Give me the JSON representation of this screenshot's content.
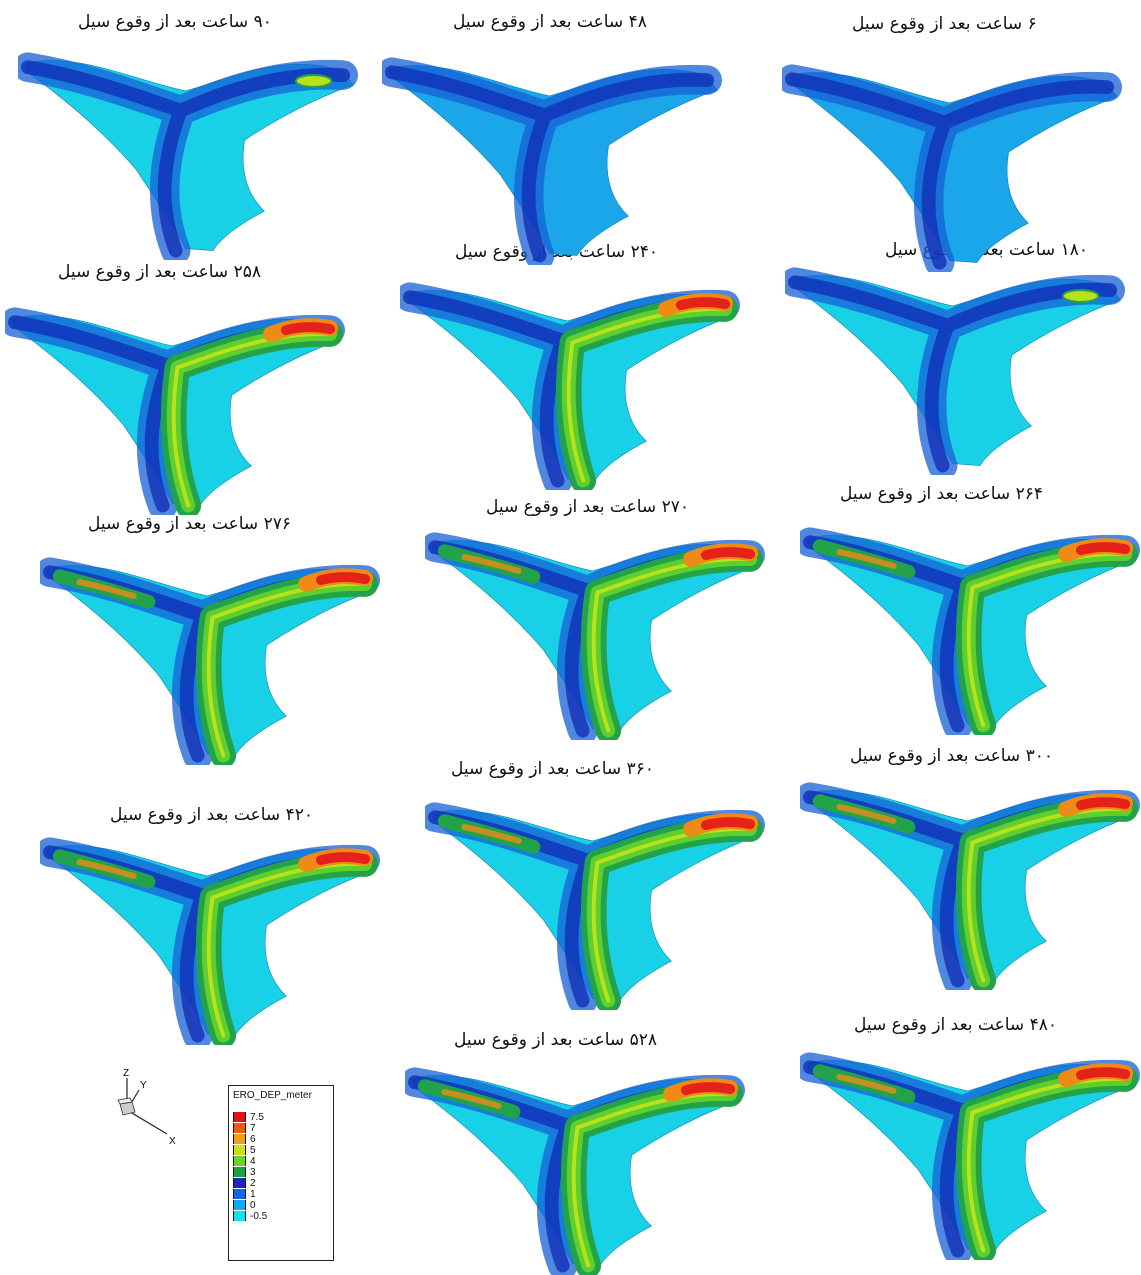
{
  "colors": {
    "cyan": "#19d1e6",
    "light_blue": "#1aa6e8",
    "mid_blue": "#1560d6",
    "dark_blue": "#1230b8",
    "green": "#22a34a",
    "light_green": "#5ecf2f",
    "yellow_green": "#b7e21c",
    "orange": "#f08a16",
    "red": "#e4221a"
  },
  "panels": [
    {
      "title": "۹۰  ساعت بعد از وقوع سیل"
    },
    {
      "title": "۴۸ ساعت بعد از وقوع سیل"
    },
    {
      "title": "۶ ساعت بعد از وقوع سیل"
    },
    {
      "title": "۲۵۸  ساعت بعد از وقوع سیل"
    },
    {
      "title": "۲۴۰ ساعت بعد از وقوع سیل"
    },
    {
      "title": "۱۸۰  ساعت بعد از وقوع سیل"
    },
    {
      "title": "۲۷۶  ساعت بعد از وقوع سیل"
    },
    {
      "title": "۲۷۰ ساعت بعد از وقوع سیل"
    },
    {
      "title": "۲۶۴ ساعت بعد از وقوع سیل"
    },
    {
      "title": "۴۲۰ ساعت بعد از وقوع سیل"
    },
    {
      "title": "۳۶۰  ساعت بعد از وقوع سیل"
    },
    {
      "title": "۳۰۰ ساعت بعد از وقوع سیل"
    },
    {
      "title": "۵۲۸  ساعت بعد از وقوع سیل"
    },
    {
      "title": "۴۸۰ ساعت بعد از وقوع سیل"
    }
  ],
  "axes": {
    "z": "Z",
    "y": "Y",
    "x": "X"
  },
  "legend": {
    "title": "ERO_DEP_meter",
    "levels": [
      {
        "label": "7.5",
        "color": "#e01414"
      },
      {
        "label": "7",
        "color": "#f05a14"
      },
      {
        "label": "6",
        "color": "#f0a014"
      },
      {
        "label": "5",
        "color": "#c8e01e"
      },
      {
        "label": "4",
        "color": "#6ed22a"
      },
      {
        "label": "3",
        "color": "#1fa23c"
      },
      {
        "label": "2",
        "color": "#1428c8"
      },
      {
        "label": "1",
        "color": "#1468e6"
      },
      {
        "label": "0",
        "color": "#14aaf0"
      },
      {
        "label": "-0.5",
        "color": "#14e0f0"
      }
    ]
  }
}
